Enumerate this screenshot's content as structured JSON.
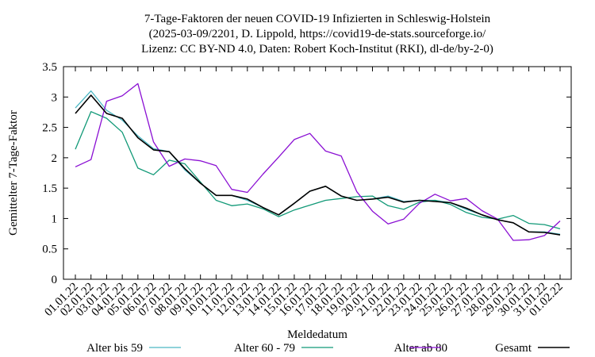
{
  "chart_data": {
    "type": "line",
    "title_lines": [
      "7-Tage-Faktoren der neuen COVID-19 Infizierten in Schleswig-Holstein",
      "(2025-03-09/2201, D. Lippold, https://covid19-de-stats.sourceforge.io/",
      "Lizenz: CC BY-ND 4.0, Daten: Robert Koch-Institut (RKI), dl-de/by-2-0)"
    ],
    "xlabel": "Meldedatum",
    "ylabel": "Gemittelter 7-Tage-Faktor",
    "ylim": [
      0,
      3.5
    ],
    "yticks": [
      "0",
      "0.5",
      "1",
      "1.5",
      "2",
      "2.5",
      "3",
      "3.5"
    ],
    "x": [
      "01.01.22",
      "02.01.22",
      "03.01.22",
      "04.01.22",
      "05.01.22",
      "06.01.22",
      "07.01.22",
      "08.01.22",
      "09.01.22",
      "10.01.22",
      "11.01.22",
      "12.01.22",
      "13.01.22",
      "14.01.22",
      "15.01.22",
      "16.01.22",
      "17.01.22",
      "18.01.22",
      "19.01.22",
      "20.01.22",
      "21.01.22",
      "22.01.22",
      "23.01.22",
      "24.01.22",
      "25.01.22",
      "26.01.22",
      "27.01.22",
      "28.01.22",
      "29.01.22",
      "30.01.22",
      "31.01.22",
      "01.02.22"
    ],
    "grid": false,
    "legend_position": "bottom",
    "series": [
      {
        "name": "Alter bis 59",
        "color": "#4cb8c4",
        "values": [
          2.82,
          3.1,
          2.78,
          2.62,
          2.36,
          2.15,
          2.1,
          1.8,
          1.58,
          1.38,
          1.38,
          1.3,
          1.18,
          1.06,
          1.25,
          1.45,
          1.53,
          1.37,
          1.3,
          1.32,
          1.37,
          1.28,
          1.3,
          1.3,
          1.26,
          1.15,
          1.06,
          0.98,
          0.93,
          0.78,
          0.78,
          0.74
        ]
      },
      {
        "name": "Alter 60 - 79",
        "color": "#119977",
        "values": [
          2.14,
          2.76,
          2.65,
          2.42,
          1.83,
          1.72,
          1.96,
          1.9,
          1.6,
          1.3,
          1.21,
          1.24,
          1.16,
          1.03,
          1.14,
          1.22,
          1.3,
          1.33,
          1.36,
          1.37,
          1.21,
          1.15,
          1.27,
          1.3,
          1.23,
          1.1,
          1.02,
          0.99,
          1.05,
          0.92,
          0.9,
          0.83
        ]
      },
      {
        "name": "Alter ab 80",
        "color": "#8a0fd3",
        "values": [
          1.85,
          1.97,
          2.93,
          3.02,
          3.22,
          2.26,
          1.86,
          1.98,
          1.95,
          1.87,
          1.48,
          1.43,
          1.73,
          2.01,
          2.3,
          2.4,
          2.11,
          2.03,
          1.44,
          1.12,
          0.91,
          0.99,
          1.25,
          1.4,
          1.29,
          1.33,
          1.13,
          0.99,
          0.64,
          0.65,
          0.72,
          0.96
        ]
      },
      {
        "name": "Gesamt",
        "color": "#000000",
        "values": [
          2.73,
          3.03,
          2.73,
          2.65,
          2.33,
          2.13,
          2.1,
          1.82,
          1.58,
          1.38,
          1.38,
          1.32,
          1.18,
          1.06,
          1.25,
          1.45,
          1.53,
          1.37,
          1.3,
          1.32,
          1.35,
          1.27,
          1.3,
          1.28,
          1.26,
          1.17,
          1.06,
          0.98,
          0.93,
          0.78,
          0.77,
          0.73
        ]
      }
    ]
  }
}
